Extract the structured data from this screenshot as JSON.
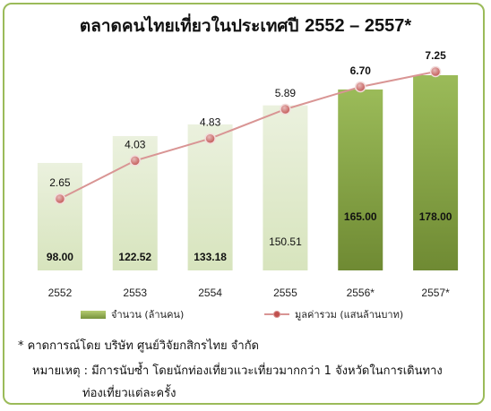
{
  "title": "ตลาดคนไทยเที่ยวในประเทศปี",
  "title_years": "2552 – 2557*",
  "colors": {
    "border": "#9bbb59",
    "bar_light": "#d7e4bd",
    "bar_dark": "#77933c",
    "line": "#d99594",
    "marker": "#c0504d"
  },
  "chart_data": {
    "type": "bar+line",
    "categories": [
      "2552",
      "2553",
      "2554",
      "2555",
      "2556*",
      "2557*"
    ],
    "series": [
      {
        "name": "จำนวน (ล้านคน)",
        "type": "bar",
        "values": [
          98.0,
          122.52,
          133.18,
          150.51,
          165.0,
          178.0
        ],
        "labels": [
          "98.00",
          "122.52",
          "133.18",
          "150.51",
          "165.00",
          "178.00"
        ],
        "highlight": [
          false,
          false,
          false,
          false,
          true,
          true
        ]
      },
      {
        "name": "มูลค่ารวม (แสนล้านบาท)",
        "type": "line",
        "values": [
          2.65,
          4.03,
          4.83,
          5.89,
          6.7,
          7.25
        ],
        "labels": [
          "2.65",
          "4.03",
          "4.83",
          "5.89",
          "6.70",
          "7.25"
        ]
      }
    ],
    "legend_position": "bottom"
  },
  "legend": {
    "bar_label": "จำนวน (ล้านคน)",
    "line_label": "มูลค่ารวม (แสนล้านบาท)"
  },
  "notes": {
    "estimate": "* คาดการณ์โดย บริษัท ศูนย์วิจัยกสิกรไทย จำกัด",
    "remark_line1": "หมายเหตุ : มีการนับซ้ำ โดยนักท่องเที่ยวแวะเที่ยวมากกว่า 1 จังหวัดในการเดินทาง",
    "remark_line2": "ท่องเที่ยวแต่ละครั้ง"
  }
}
